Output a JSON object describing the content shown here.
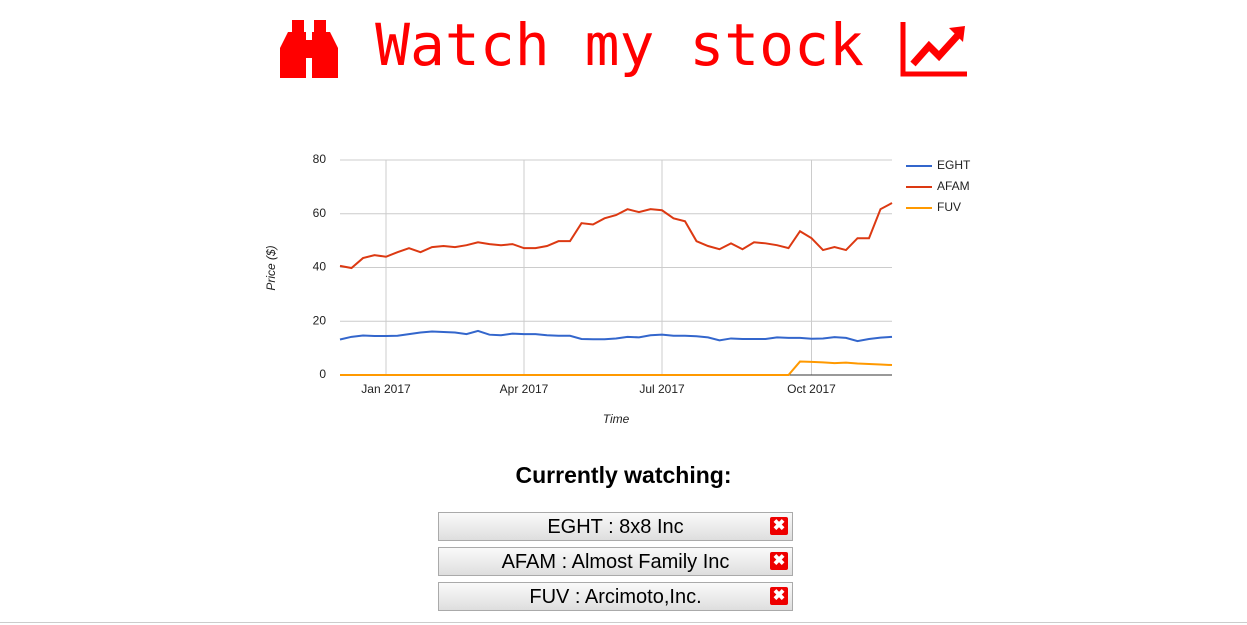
{
  "header": {
    "title": "Watch my stock"
  },
  "chart_data": {
    "type": "line",
    "x_label": "Time",
    "y_label": "Price ($)",
    "categories": [
      null,
      null,
      null,
      null,
      "Jan 2017",
      null,
      null,
      null,
      null,
      null,
      null,
      null,
      null,
      null,
      null,
      null,
      "Apr 2017",
      null,
      null,
      null,
      null,
      null,
      null,
      null,
      null,
      null,
      null,
      null,
      "Jul 2017",
      null,
      null,
      null,
      null,
      null,
      null,
      null,
      null,
      null,
      null,
      null,
      null,
      "Oct 2017",
      null,
      null,
      null,
      null,
      null,
      null,
      null
    ],
    "series": [
      {
        "name": "EGHT",
        "color": "#3366cc",
        "values": [
          13.2,
          14.2,
          14.7,
          14.5,
          14.5,
          14.6,
          15.2,
          15.8,
          16.2,
          16,
          15.8,
          15.2,
          16.4,
          15,
          14.8,
          15.4,
          15.2,
          15.2,
          14.8,
          14.6,
          14.6,
          13.4,
          13.3,
          13.3,
          13.6,
          14.2,
          14,
          14.8,
          15,
          14.6,
          14.6,
          14.4,
          14,
          12.9,
          13.6,
          13.4,
          13.4,
          13.4,
          14,
          13.8,
          13.8,
          13.5,
          13.6,
          14.1,
          13.8,
          12.6,
          13.4,
          13.9,
          14.2
        ]
      },
      {
        "name": "AFAM",
        "color": "#dc3912",
        "values": [
          40.6,
          39.8,
          43.5,
          44.6,
          44,
          45.7,
          47.2,
          45.7,
          47.6,
          48,
          47.6,
          48.3,
          49.4,
          48.7,
          48.3,
          48.7,
          47.2,
          47.2,
          48,
          49.8,
          49.8,
          56.5,
          56,
          58.3,
          59.5,
          61.7,
          60.6,
          61.7,
          61.3,
          58.3,
          57.2,
          49.8,
          48,
          46.8,
          49,
          46.8,
          49.4,
          49,
          48.3,
          47.2,
          53.5,
          50.9,
          46.5,
          47.6,
          46.5,
          50.9,
          50.9,
          61.7,
          64
        ]
      },
      {
        "name": "FUV",
        "color": "#ff9900",
        "values": [
          0,
          0,
          0,
          0,
          0,
          0,
          0,
          0,
          0,
          0,
          0,
          0,
          0,
          0,
          0,
          0,
          0,
          0,
          0,
          0,
          0,
          0,
          0,
          0,
          0,
          0,
          0,
          0,
          0,
          0,
          0,
          0,
          0,
          0,
          0,
          0,
          0,
          0,
          0,
          0,
          5,
          4.9,
          4.7,
          4.4,
          4.6,
          4.3,
          4.1,
          3.9,
          3.7
        ]
      }
    ],
    "ylim": [
      0,
      80
    ],
    "yticks": [
      0,
      20,
      40,
      60,
      80
    ],
    "grid": true,
    "legend": "right"
  },
  "watching": {
    "heading": "Currently watching:",
    "items": [
      "EGHT : 8x8 Inc",
      "AFAM : Almost Family Inc",
      "FUV : Arcimoto,Inc."
    ]
  }
}
